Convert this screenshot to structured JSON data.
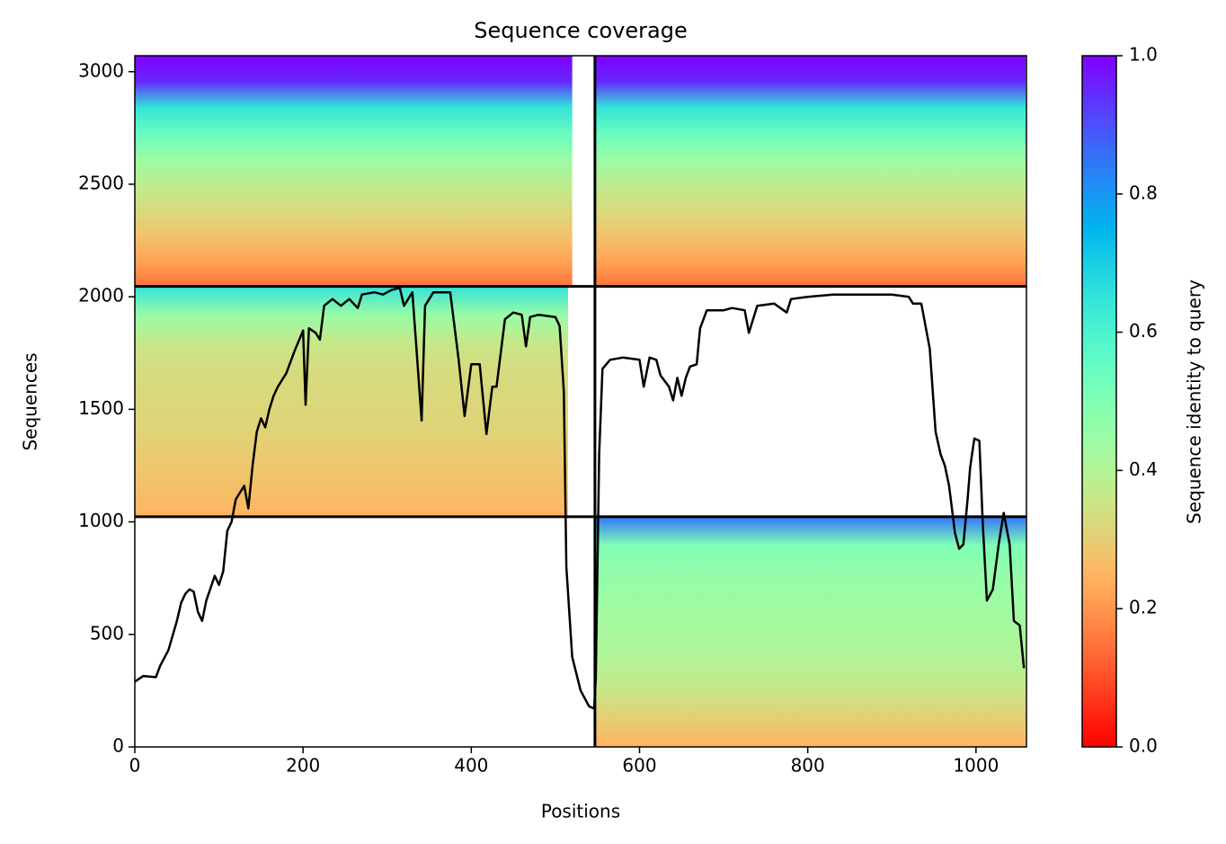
{
  "chart_data": {
    "type": "coverage",
    "title": "Sequence coverage",
    "x_label": "Positions",
    "y_label": "Sequences",
    "colorbar_label": "Sequence identity to query",
    "colormap": "rainbow_r",
    "xlim": [
      0,
      1060
    ],
    "ylim": [
      0,
      3071
    ],
    "xticks": [
      0,
      200,
      400,
      600,
      800,
      1000
    ],
    "yticks": [
      0,
      500,
      1000,
      1500,
      2000,
      2500,
      3000
    ],
    "clim": [
      0,
      1
    ],
    "cticks": [
      {
        "value": 0,
        "label": "0.0"
      },
      0.2,
      0.4,
      0.6,
      0.8,
      {
        "value": 1,
        "label": "1.0"
      }
    ],
    "blocks": [
      {
        "xrange": [
          0,
          520
        ],
        "yrange": [
          2046,
          3071
        ],
        "identity": [
          0.15,
          0.22,
          0.28,
          0.33,
          0.38,
          0.45,
          0.55,
          0.65,
          0.95,
          1.0
        ]
      },
      {
        "xrange": [
          547,
          1059
        ],
        "yrange": [
          2046,
          3071
        ],
        "identity": [
          0.15,
          0.22,
          0.28,
          0.33,
          0.38,
          0.45,
          0.55,
          0.65,
          0.95,
          1.0
        ]
      },
      {
        "xrange": [
          0,
          515
        ],
        "yrange": [
          1023,
          2046
        ],
        "identity": [
          0.25,
          0.27,
          0.29,
          0.31,
          0.32,
          0.33,
          0.36,
          0.45,
          0.65
        ]
      },
      {
        "xrange": [
          547,
          1059
        ],
        "yrange": [
          0,
          1023
        ],
        "identity": [
          0.25,
          0.3,
          0.36,
          0.4,
          0.42,
          0.44,
          0.46,
          0.5,
          0.85
        ]
      }
    ],
    "dividers_x": [
      547
    ],
    "dividers_y": [
      1023,
      2046
    ],
    "line_color": "#000000",
    "x": [
      0,
      10,
      25,
      30,
      40,
      50,
      55,
      60,
      65,
      70,
      75,
      80,
      85,
      95,
      100,
      105,
      110,
      115,
      120,
      125,
      130,
      135,
      140,
      145,
      150,
      155,
      160,
      165,
      170,
      180,
      190,
      200,
      203,
      207,
      215,
      220,
      225,
      235,
      245,
      255,
      265,
      270,
      285,
      295,
      305,
      315,
      320,
      330,
      341,
      345,
      355,
      375,
      385,
      392,
      400,
      410,
      418,
      425,
      430,
      440,
      450,
      460,
      465,
      470,
      480,
      500,
      505,
      510,
      513,
      520,
      530,
      540,
      546,
      548,
      552,
      556,
      565,
      580,
      600,
      605,
      612,
      620,
      625,
      635,
      640,
      645,
      650,
      655,
      660,
      668,
      672,
      680,
      700,
      710,
      725,
      730,
      740,
      760,
      775,
      780,
      800,
      830,
      900,
      920,
      925,
      935,
      945,
      952,
      958,
      963,
      968,
      975,
      980,
      985,
      990,
      993,
      998,
      1004,
      1008,
      1013,
      1020,
      1027,
      1033,
      1040,
      1045,
      1052,
      1057
    ],
    "values": [
      290,
      315,
      310,
      360,
      430,
      560,
      640,
      680,
      700,
      690,
      600,
      560,
      650,
      760,
      720,
      780,
      960,
      1000,
      1100,
      1130,
      1160,
      1060,
      1250,
      1400,
      1460,
      1420,
      1500,
      1560,
      1600,
      1660,
      1760,
      1850,
      1520,
      1860,
      1840,
      1810,
      1960,
      1990,
      1960,
      1990,
      1950,
      2010,
      2020,
      2010,
      2030,
      2040,
      1960,
      2020,
      1450,
      1960,
      2020,
      2020,
      1720,
      1470,
      1700,
      1700,
      1390,
      1600,
      1600,
      1900,
      1930,
      1920,
      1780,
      1910,
      1920,
      1910,
      1870,
      1580,
      800,
      400,
      250,
      180,
      170,
      300,
      1300,
      1680,
      1720,
      1730,
      1720,
      1600,
      1730,
      1720,
      1650,
      1600,
      1540,
      1640,
      1560,
      1640,
      1690,
      1700,
      1860,
      1940,
      1940,
      1950,
      1940,
      1840,
      1960,
      1970,
      1930,
      1990,
      2000,
      2010,
      2010,
      2000,
      1970,
      1970,
      1770,
      1400,
      1300,
      1250,
      1160,
      950,
      880,
      900,
      1100,
      1240,
      1370,
      1360,
      1000,
      650,
      700,
      900,
      1040,
      900,
      560,
      540,
      350
    ]
  }
}
